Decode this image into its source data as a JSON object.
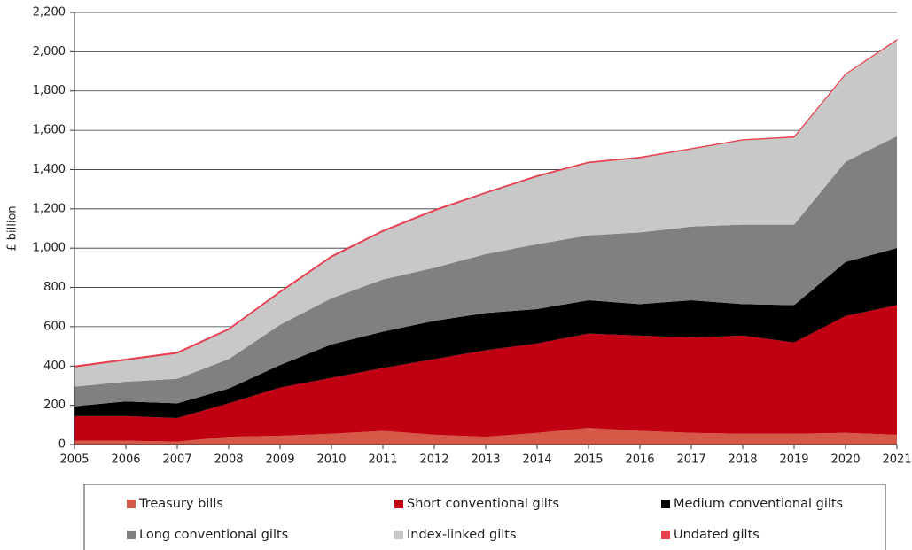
{
  "chart_data": {
    "type": "stacked_area",
    "y_label": "£ billion",
    "x": [
      2005,
      2006,
      2007,
      2008,
      2009,
      2010,
      2011,
      2012,
      2013,
      2014,
      2015,
      2016,
      2017,
      2018,
      2019,
      2020,
      2021
    ],
    "xlim": [
      2005,
      2021
    ],
    "xticks": [
      2005,
      2006,
      2007,
      2008,
      2009,
      2010,
      2011,
      2012,
      2013,
      2014,
      2015,
      2016,
      2017,
      2018,
      2019,
      2020,
      2021
    ],
    "ylim": [
      0,
      2200
    ],
    "yticks": [
      0,
      200,
      400,
      600,
      800,
      {
        "value": 1000,
        "label": "1,000"
      },
      {
        "value": 1200,
        "label": "1,200"
      },
      {
        "value": 1400,
        "label": "1,400"
      },
      {
        "value": 1600,
        "label": "1,600"
      },
      {
        "value": 1800,
        "label": "1,800"
      },
      {
        "value": 2000,
        "label": "2,000"
      },
      {
        "value": 2200,
        "label": "2,200"
      }
    ],
    "grid": true,
    "legend": "bottom",
    "series": [
      {
        "name": "Treasury bills",
        "color": "#d65846",
        "values": [
          20,
          20,
          15,
          40,
          45,
          55,
          70,
          50,
          40,
          60,
          85,
          70,
          60,
          55,
          55,
          60,
          50
        ]
      },
      {
        "name": "Short conventional gilts",
        "color": "#c00012",
        "values": [
          125,
          125,
          120,
          170,
          245,
          285,
          320,
          385,
          440,
          455,
          480,
          485,
          485,
          500,
          465,
          595,
          660
        ]
      },
      {
        "name": "Medium conventional gilts",
        "color": "#000000",
        "values": [
          50,
          75,
          75,
          75,
          115,
          170,
          185,
          195,
          190,
          175,
          170,
          160,
          190,
          160,
          190,
          275,
          290
        ]
      },
      {
        "name": "Long conventional gilts",
        "color": "#808080",
        "values": [
          100,
          100,
          125,
          150,
          205,
          235,
          265,
          270,
          300,
          330,
          330,
          365,
          375,
          405,
          410,
          510,
          570
        ]
      },
      {
        "name": "Index-linked gilts",
        "color": "#c8c8c8",
        "values": [
          100,
          110,
          130,
          150,
          165,
          210,
          245,
          290,
          310,
          345,
          370,
          380,
          395,
          430,
          445,
          445,
          490
        ]
      },
      {
        "name": "Undated gilts",
        "color": "#e8404f",
        "values": [
          5,
          5,
          5,
          5,
          5,
          5,
          5,
          5,
          4,
          4,
          3,
          3,
          2,
          2,
          2,
          1,
          1
        ]
      }
    ]
  }
}
